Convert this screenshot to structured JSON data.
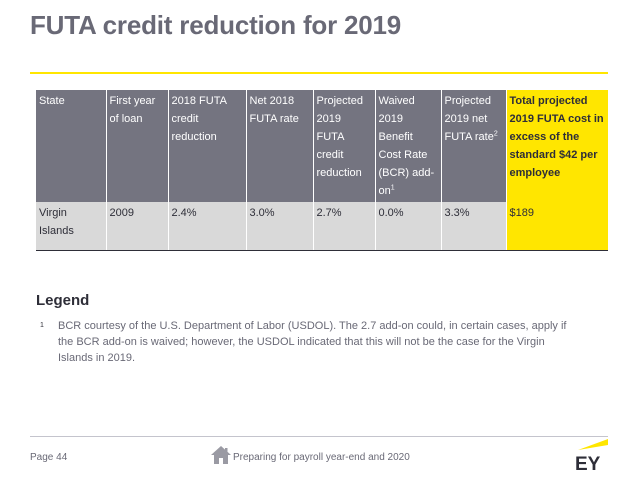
{
  "slide": {
    "title": "FUTA credit reduction for 2019",
    "page_label": "Page 44",
    "footer_text": "Preparing for payroll year-end and 2020",
    "logo_text": "EY",
    "accent_color": "#ffe600"
  },
  "table": {
    "headers": {
      "state": "State",
      "first_year": "First year of loan",
      "credit_2018": "2018 FUTA credit reduction",
      "net_2018": "Net 2018 FUTA rate",
      "proj_2019_credit": "Projected 2019 FUTA credit reduction",
      "waived_bcr": "Waived 2019 Benefit Cost Rate (BCR) add-on",
      "waived_bcr_sup": "1",
      "proj_2019_net": "Projected 2019 net FUTA rate",
      "proj_2019_net_sup": "2",
      "total_cost": "Total projected 2019 FUTA cost in excess of the standard $42 per employee"
    },
    "row": {
      "state": "Virgin Islands",
      "first_year": "2009",
      "credit_2018": "2.4%",
      "net_2018": "3.0%",
      "proj_2019_credit": "2.7%",
      "waived_bcr": "0.0%",
      "proj_2019_net": "3.3%",
      "total_cost": "$189"
    }
  },
  "legend": {
    "title": "Legend",
    "note_marker": "1",
    "note_text": "BCR courtesy of the U.S. Department of Labor (USDOL). The 2.7 add-on could, in certain cases, apply if the BCR add-on is waived; however, the USDOL indicated that this will not be the case for the Virgin Islands in 2019."
  },
  "icons": {
    "home": "home-icon",
    "logo": "ey-logo"
  }
}
